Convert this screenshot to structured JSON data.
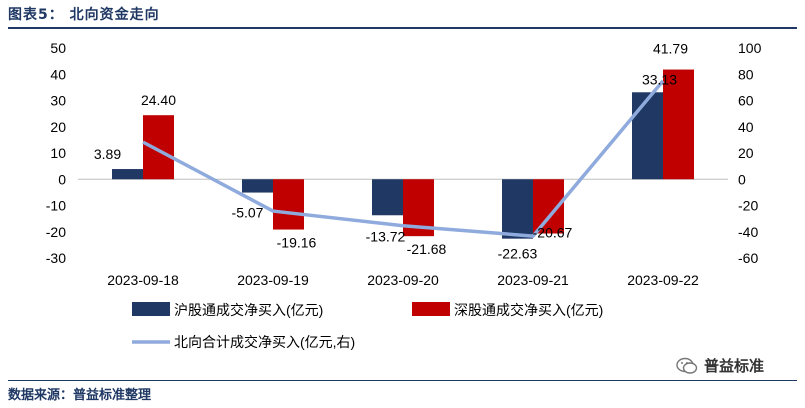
{
  "header": {
    "title": "图表5：  北向资金走向"
  },
  "footer": {
    "source": "数据来源：普益标准整理"
  },
  "watermark": {
    "text": "普益标准"
  },
  "colors": {
    "sh": "#1f3864",
    "sz": "#c00000",
    "total": "#8faadc",
    "text": "#000000"
  },
  "chart_data": {
    "type": "bar",
    "title": "北向资金走向",
    "categories": [
      "2023-09-18",
      "2023-09-19",
      "2023-09-20",
      "2023-09-21",
      "2023-09-22"
    ],
    "series": [
      {
        "name": "沪股通成交净买入(亿元)",
        "axis": "left",
        "type": "bar",
        "values": [
          3.89,
          -5.07,
          -13.72,
          -22.63,
          33.13
        ],
        "labels": [
          "3.89",
          "-5.07",
          "-13.72",
          "-22.63",
          "33.13"
        ]
      },
      {
        "name": "深股通成交净买入(亿元)",
        "axis": "left",
        "type": "bar",
        "values": [
          24.4,
          -19.16,
          -21.68,
          -20.67,
          41.79
        ],
        "labels": [
          "24.40",
          "-19.16",
          "-21.68",
          "-20.67",
          "41.79"
        ]
      },
      {
        "name": "北向合计成交净买入(亿元,右)",
        "axis": "right",
        "type": "line",
        "values": [
          28.29,
          -24.23,
          -35.4,
          -43.3,
          74.92
        ]
      }
    ],
    "ylim_left": [
      -30,
      50
    ],
    "ylim_right": [
      -60,
      100
    ],
    "yticks_left": [
      "50",
      "40",
      "30",
      "20",
      "10",
      "0",
      "-10",
      "-20",
      "-30"
    ],
    "yticks_right": [
      "100",
      "80",
      "60",
      "40",
      "20",
      "0",
      "-20",
      "-40",
      "-60"
    ],
    "legend": {
      "position": "bottom"
    },
    "grid": false
  }
}
